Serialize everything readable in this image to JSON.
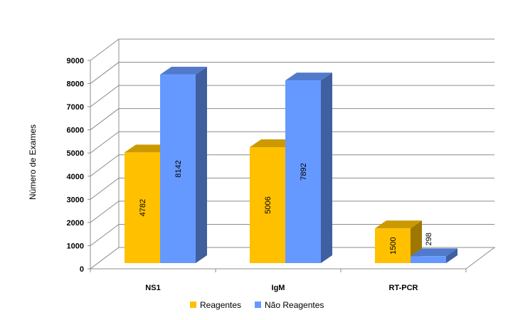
{
  "chart_data": {
    "type": "bar",
    "style": "3d-clustered-column",
    "categories": [
      "NS1",
      "IgM",
      "RT-PCR"
    ],
    "series": [
      {
        "name": "Reagentes",
        "values": [
          4782,
          5006,
          1500
        ],
        "color": "#FFC000"
      },
      {
        "name": "Não Reagentes",
        "values": [
          8142,
          7892,
          298
        ],
        "color": "#6699FF"
      }
    ],
    "ylabel": "Número de Exames",
    "xlabel": "",
    "ylim": [
      0,
      9000
    ],
    "yticks": [
      0,
      1000,
      2000,
      3000,
      4000,
      5000,
      6000,
      7000,
      8000,
      9000
    ],
    "grid": true,
    "legend_position": "bottom",
    "data_labels": true
  }
}
